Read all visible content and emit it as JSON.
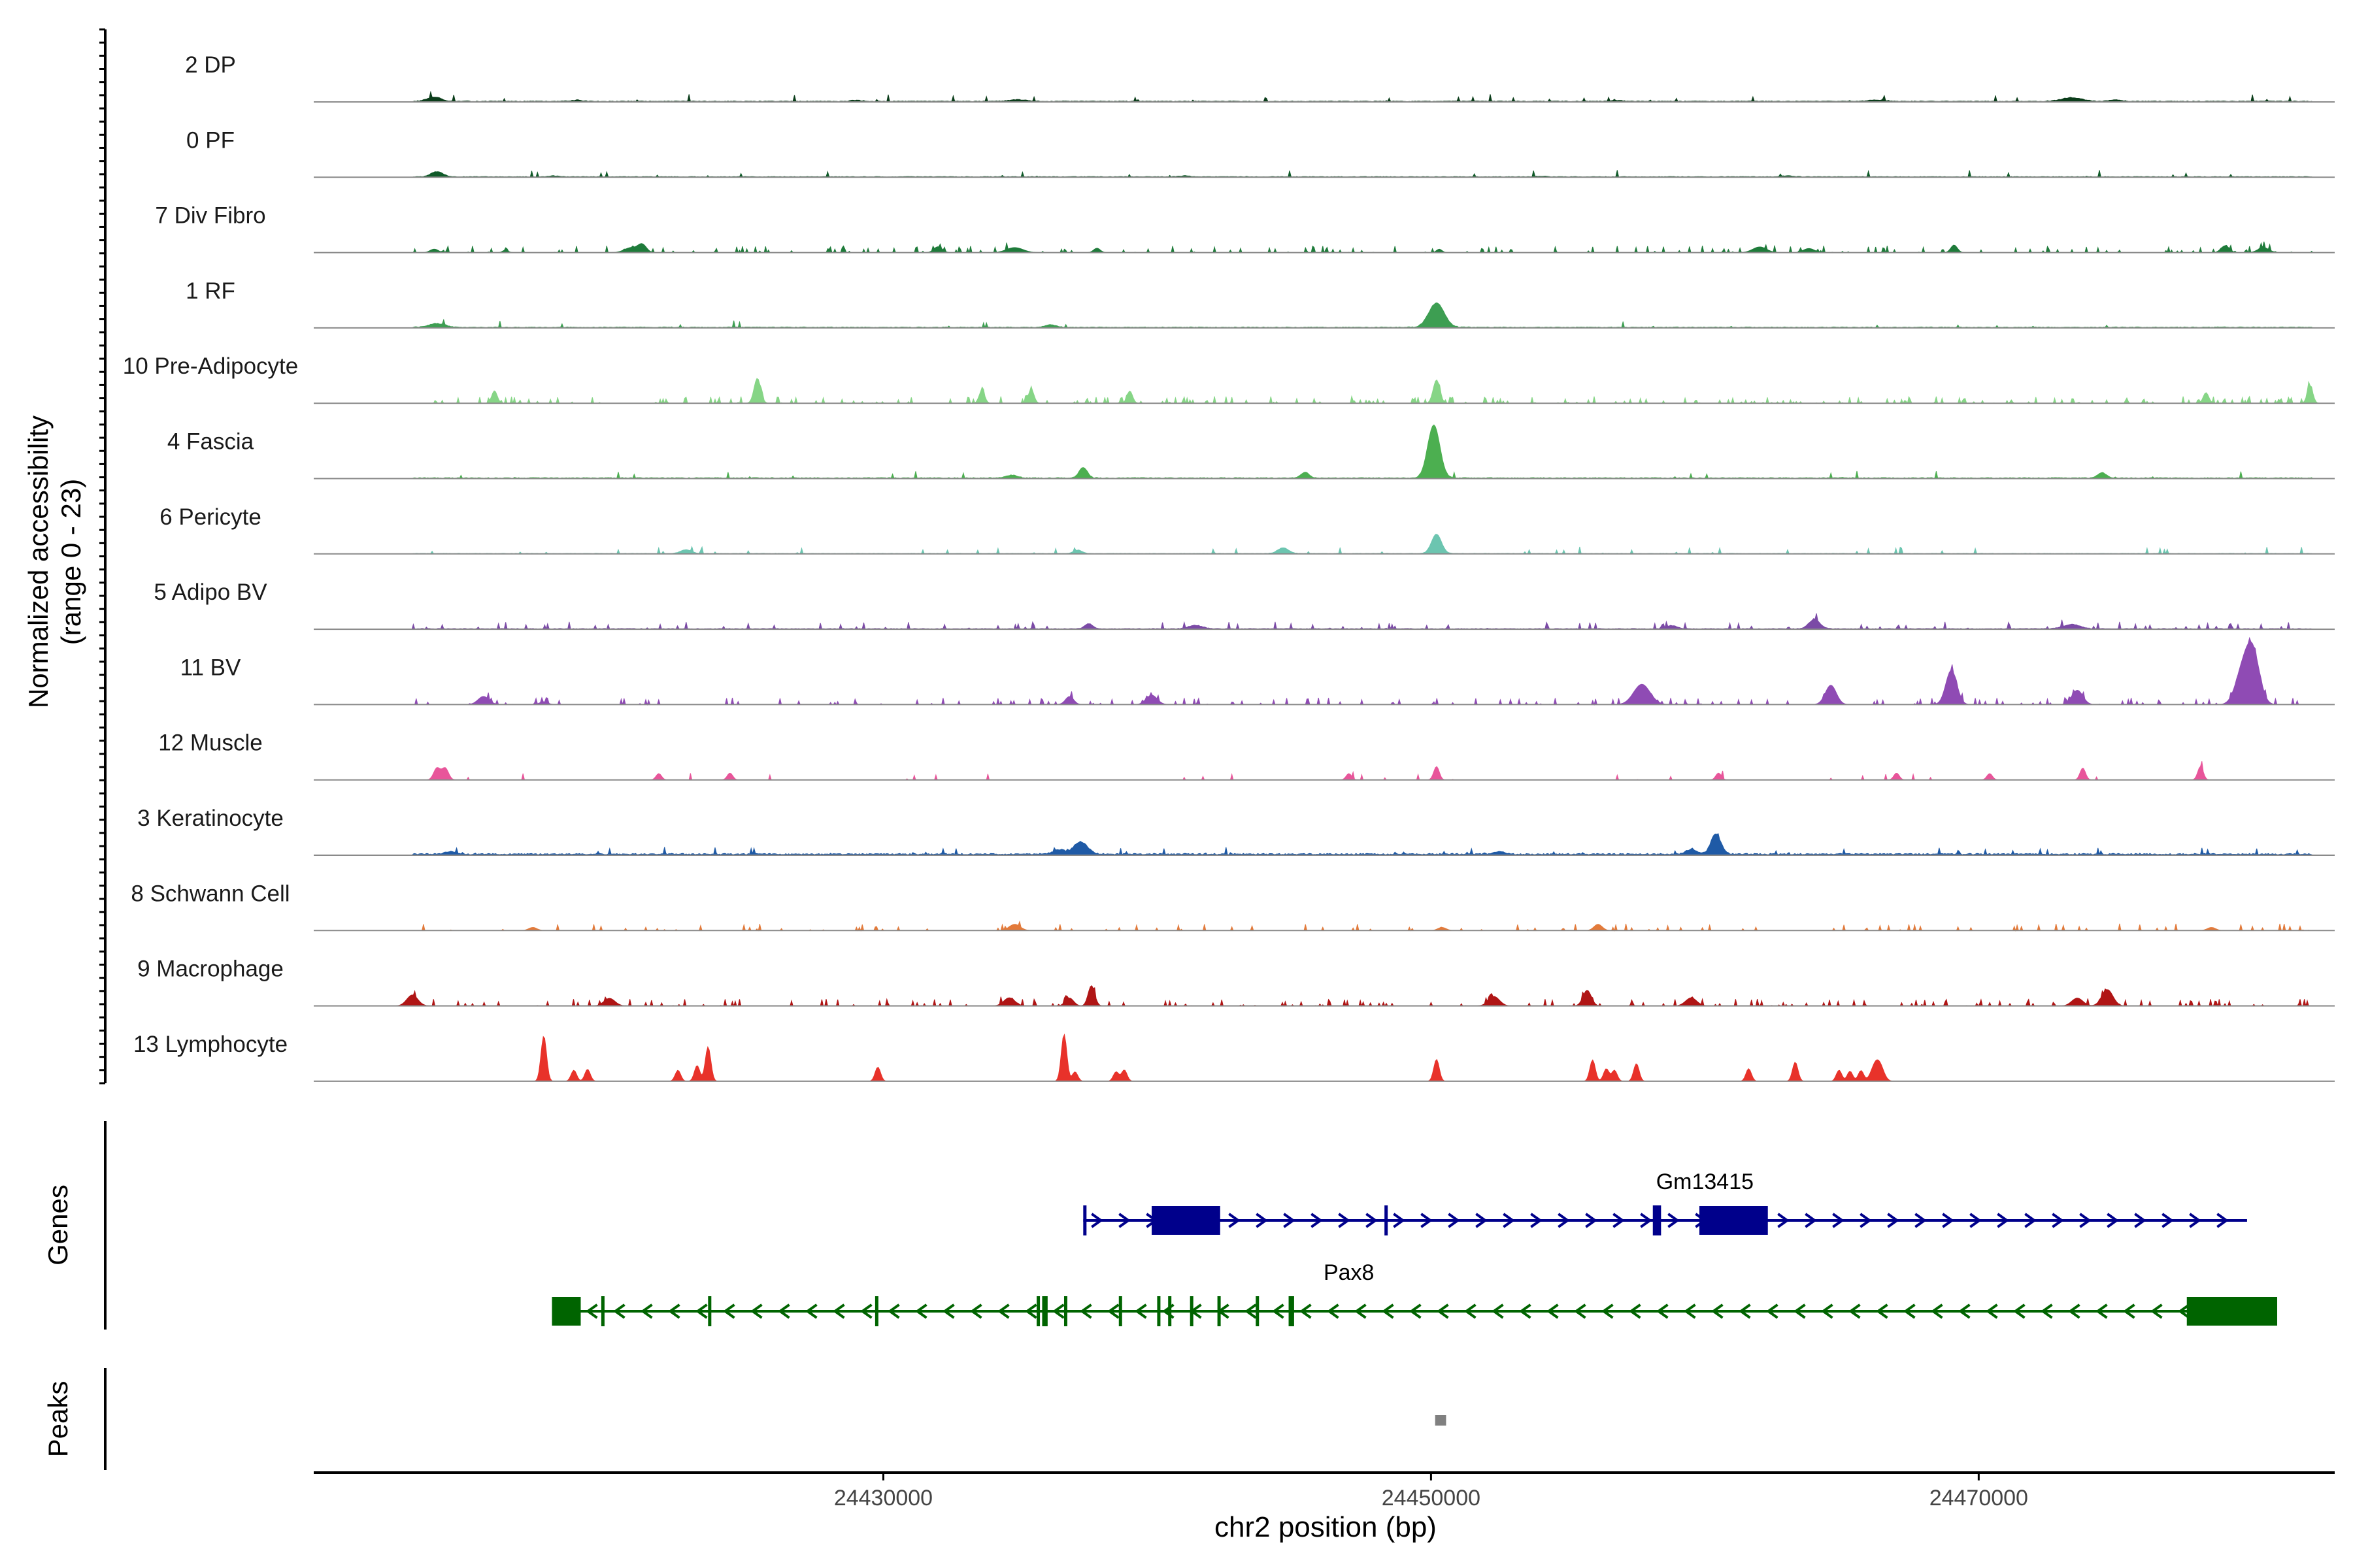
{
  "chart_data": {
    "type": "area",
    "title": "",
    "ylabel": "Normalized accessibility",
    "ylabel_range": "(range 0 - 23)",
    "xlabel": "chr2 position (bp)",
    "chromosome": "chr2",
    "xlim": [
      24409200,
      24483000
    ],
    "ylim": [
      0,
      23
    ],
    "x_ticks": [
      24430000,
      24450000,
      24470000
    ],
    "x_tick_labels": [
      "24430000",
      "24450000",
      "24470000"
    ],
    "panel_labels": {
      "genes": "Genes",
      "peaks": "Peaks"
    },
    "tracks": [
      {
        "name": "2 DP",
        "color": "#0b3d1a",
        "background": 0.25,
        "density": 0.08,
        "peaks": [
          [
            24413600,
            1.4,
            250
          ],
          [
            24418800,
            0.4,
            200
          ],
          [
            24429000,
            0.3,
            200
          ],
          [
            24434900,
            0.5,
            300
          ],
          [
            24456800,
            0.3,
            200
          ],
          [
            24466300,
            0.4,
            300
          ],
          [
            24473400,
            1.2,
            350
          ],
          [
            24475000,
            0.5,
            200
          ]
        ]
      },
      {
        "name": "0 PF",
        "color": "#0f5a28",
        "background": 0.2,
        "density": 0.06,
        "peaks": [
          [
            24413700,
            1.6,
            220
          ],
          [
            24418000,
            0.3,
            200
          ],
          [
            24441000,
            0.3,
            200
          ],
          [
            24454000,
            0.2,
            200
          ],
          [
            24463000,
            0.3,
            200
          ]
        ]
      },
      {
        "name": "7 Div Fibro",
        "color": "#1e7b3a",
        "background": 0.0,
        "density": 0.35,
        "peaks": [
          [
            24413600,
            1.1,
            150
          ],
          [
            24416200,
            0.8,
            100
          ],
          [
            24420800,
            1.6,
            250
          ],
          [
            24421200,
            2.4,
            150
          ],
          [
            24432000,
            1.9,
            150
          ],
          [
            24434800,
            1.6,
            300
          ],
          [
            24437800,
            1.4,
            120
          ],
          [
            24450300,
            1.1,
            100
          ],
          [
            24462000,
            1.8,
            250
          ],
          [
            24463800,
            1.3,
            200
          ],
          [
            24469100,
            2.4,
            120
          ],
          [
            24479000,
            2.2,
            150
          ],
          [
            24480400,
            1.6,
            200
          ]
        ]
      },
      {
        "name": "1 RF",
        "color": "#3d9e52",
        "background": 0.25,
        "density": 0.04,
        "peaks": [
          [
            24413700,
            1.2,
            300
          ],
          [
            24450200,
            7.8,
            280
          ],
          [
            24436100,
            0.8,
            200
          ]
        ]
      },
      {
        "name": "10 Pre-Adipocyte",
        "color": "#86d586",
        "background": 0.0,
        "density": 0.55,
        "peaks": [
          [
            24425400,
            8.0,
            120
          ],
          [
            24450200,
            7.5,
            120
          ],
          [
            24433600,
            4.2,
            100
          ],
          [
            24435400,
            4.5,
            100
          ],
          [
            24415800,
            4.0,
            100
          ],
          [
            24439000,
            3.9,
            100
          ],
          [
            24482100,
            5.6,
            100
          ],
          [
            24478300,
            3.4,
            100
          ]
        ]
      },
      {
        "name": "4 Fascia",
        "color": "#4caf50",
        "background": 0.25,
        "density": 0.06,
        "peaks": [
          [
            24450100,
            17.0,
            220
          ],
          [
            24437300,
            3.4,
            150
          ],
          [
            24445400,
            1.8,
            150
          ],
          [
            24474500,
            1.7,
            150
          ],
          [
            24434700,
            0.9,
            200
          ]
        ]
      },
      {
        "name": "6 Pericyte",
        "color": "#6cc5b0",
        "background": 0.15,
        "density": 0.09,
        "peaks": [
          [
            24450200,
            6.2,
            180
          ],
          [
            24444600,
            1.8,
            200
          ],
          [
            24437100,
            1.1,
            150
          ],
          [
            24422800,
            1.2,
            200
          ]
        ]
      },
      {
        "name": "5 Adipo BV",
        "color": "#7b4aa6",
        "background": 0.2,
        "density": 0.2,
        "peaks": [
          [
            24464000,
            3.0,
            200
          ],
          [
            24441400,
            1.1,
            250
          ],
          [
            24437500,
            1.6,
            150
          ],
          [
            24473400,
            1.4,
            300
          ],
          [
            24458800,
            1.0,
            200
          ]
        ]
      },
      {
        "name": "11 BV",
        "color": "#8f4bb4",
        "background": 0.0,
        "density": 0.4,
        "peaks": [
          [
            24480000,
            17.0,
            250
          ],
          [
            24479600,
            9.0,
            250
          ],
          [
            24469000,
            11.0,
            200
          ],
          [
            24464600,
            6.2,
            200
          ],
          [
            24457700,
            6.5,
            300
          ],
          [
            24473600,
            4.6,
            200
          ],
          [
            24415400,
            2.6,
            200
          ],
          [
            24439800,
            3.0,
            200
          ],
          [
            24436800,
            2.6,
            150
          ],
          [
            24417600,
            0.9,
            150
          ]
        ]
      },
      {
        "name": "12 Muscle",
        "color": "#e8559a",
        "background": 0.0,
        "density": 0.05,
        "peaks": [
          [
            24413700,
            3.8,
            120
          ],
          [
            24414000,
            3.8,
            120
          ],
          [
            24450200,
            4.3,
            100
          ],
          [
            24460500,
            2.2,
            100
          ],
          [
            24473800,
            3.8,
            100
          ],
          [
            24478100,
            4.3,
            100
          ],
          [
            24421800,
            2.0,
            100
          ],
          [
            24424400,
            2.2,
            100
          ],
          [
            24447000,
            2.0,
            100
          ],
          [
            24467000,
            2.2,
            100
          ],
          [
            24470400,
            2.0,
            100
          ]
        ]
      },
      {
        "name": "3 Keratinocyte",
        "color": "#1f5aa6",
        "background": 0.45,
        "density": 0.15,
        "peaks": [
          [
            24460400,
            6.5,
            180
          ],
          [
            24437200,
            4.0,
            250
          ],
          [
            24436400,
            1.5,
            200
          ],
          [
            24414200,
            0.9,
            200
          ],
          [
            24452500,
            0.9,
            200
          ],
          [
            24459500,
            1.5,
            200
          ]
        ]
      },
      {
        "name": "8 Schwann Cell",
        "color": "#e37a3a",
        "background": 0.0,
        "density": 0.28,
        "peaks": [
          [
            24434800,
            2.0,
            200
          ],
          [
            24456100,
            2.0,
            150
          ],
          [
            24450400,
            1.0,
            150
          ],
          [
            24417200,
            1.0,
            150
          ],
          [
            24478500,
            1.0,
            150
          ]
        ]
      },
      {
        "name": "9 Macrophage",
        "color": "#b01515",
        "background": 0.0,
        "density": 0.42,
        "peaks": [
          [
            24437600,
            6.5,
            120
          ],
          [
            24455700,
            5.0,
            150
          ],
          [
            24436800,
            2.5,
            150
          ],
          [
            24412800,
            3.5,
            200
          ],
          [
            24474700,
            5.2,
            200
          ],
          [
            24473600,
            2.5,
            200
          ],
          [
            24452300,
            3.0,
            200
          ],
          [
            24420000,
            2.4,
            200
          ],
          [
            24434600,
            2.6,
            200
          ],
          [
            24459500,
            2.6,
            200
          ]
        ]
      },
      {
        "name": "13 Lymphocyte",
        "color": "#e8322a",
        "background": 0.0,
        "density": 0.0,
        "peaks": [
          [
            24417600,
            14.5,
            100
          ],
          [
            24423600,
            11.0,
            100
          ],
          [
            24436600,
            15.0,
            100
          ],
          [
            24423200,
            5.0,
            100
          ],
          [
            24422500,
            3.5,
            100
          ],
          [
            24450200,
            7.0,
            100
          ],
          [
            24455900,
            6.8,
            100
          ],
          [
            24457500,
            5.6,
            100
          ],
          [
            24463300,
            6.1,
            100
          ],
          [
            24429800,
            4.5,
            100
          ],
          [
            24418700,
            3.5,
            100
          ],
          [
            24419200,
            3.8,
            100
          ],
          [
            24438800,
            3.6,
            100
          ],
          [
            24456400,
            4.0,
            100
          ],
          [
            24461600,
            4.0,
            100
          ],
          [
            24464900,
            3.5,
            100
          ],
          [
            24465300,
            3.2,
            100
          ],
          [
            24466200,
            4.3,
            150
          ],
          [
            24465700,
            3.4,
            100
          ],
          [
            24437000,
            3.0,
            100
          ],
          [
            24438500,
            3.0,
            100
          ],
          [
            24456700,
            3.5,
            100
          ],
          [
            24466400,
            4.3,
            150
          ]
        ]
      }
    ],
    "genes": [
      {
        "name": "Pax8",
        "strand": "-",
        "color": "#006400",
        "row": 2,
        "start": 24417900,
        "end": 24480400,
        "exons": [
          [
            24417900,
            24418950
          ],
          [
            24477600,
            24480900
          ],
          [
            24423600,
            24423700
          ],
          [
            24429700,
            24429800
          ],
          [
            24435800,
            24436000
          ],
          [
            24436600,
            24436700
          ],
          [
            24440000,
            24440100
          ],
          [
            24440400,
            24440500
          ],
          [
            24441200,
            24441300
          ],
          [
            24442200,
            24442300
          ],
          [
            24443600,
            24443700
          ],
          [
            24444800,
            24445000
          ],
          [
            24435600,
            24435700
          ],
          [
            24438600,
            24438700
          ],
          [
            24419700,
            24419800
          ]
        ],
        "label_at": 24447000
      },
      {
        "name": "Gm13415",
        "strand": "+",
        "color": "#00008b",
        "row": 1,
        "start": 24437300,
        "end": 24479800,
        "exons": [
          [
            24439800,
            24442300
          ],
          [
            24459800,
            24462300
          ],
          [
            24458100,
            24458400
          ],
          [
            24437300,
            24437400
          ],
          [
            24448300,
            24448400
          ]
        ],
        "label_at": 24460000
      }
    ],
    "peaks_regions": [
      {
        "start": 24450150,
        "end": 24450550,
        "color": "#808080"
      }
    ]
  }
}
